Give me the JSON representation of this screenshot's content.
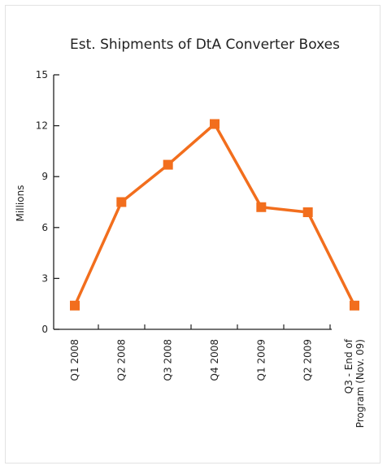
{
  "chart_data": {
    "type": "line",
    "title": "Est. Shipments of DtA Converter Boxes",
    "ylabel": "Millions",
    "xlabel": "",
    "ylim": [
      0,
      15
    ],
    "yticks": [
      0,
      3,
      6,
      9,
      12,
      15
    ],
    "grid": false,
    "legend": "none",
    "categories": [
      "Q1 2008",
      "Q2 2008",
      "Q3 2008",
      "Q4 2008",
      "Q1 2009",
      "Q2 2009",
      "Q3 - End of Program (Nov. 09)"
    ],
    "category_lines": [
      [
        "Q1 2008"
      ],
      [
        "Q2 2008"
      ],
      [
        "Q3 2008"
      ],
      [
        "Q4 2008"
      ],
      [
        "Q1 2009"
      ],
      [
        "Q2 2009"
      ],
      [
        "Q3 - End of",
        "Program (Nov. 09)"
      ]
    ],
    "series": [
      {
        "values": [
          1.4,
          7.5,
          9.7,
          12.1,
          7.2,
          6.9,
          1.4
        ],
        "color": "#f26e1d"
      }
    ]
  }
}
